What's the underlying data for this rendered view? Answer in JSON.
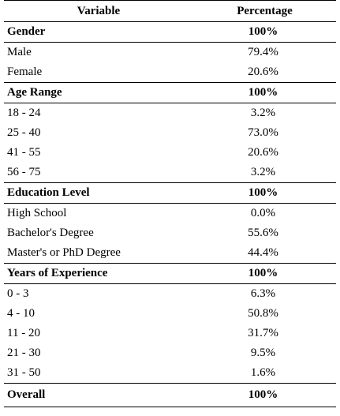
{
  "table": {
    "headers": [
      "Variable",
      "Percentage"
    ],
    "sections": [
      {
        "label": "Gender",
        "total": "100%",
        "rows": [
          {
            "label": "Male",
            "value": "79.4%"
          },
          {
            "label": "Female",
            "value": "20.6%"
          }
        ]
      },
      {
        "label": "Age Range",
        "total": "100%",
        "rows": [
          {
            "label": "18 - 24",
            "value": "3.2%"
          },
          {
            "label": "25 - 40",
            "value": "73.0%"
          },
          {
            "label": "41 - 55",
            "value": "20.6%"
          },
          {
            "label": "56 - 75",
            "value": "3.2%"
          }
        ]
      },
      {
        "label": "Education Level",
        "total": "100%",
        "rows": [
          {
            "label": "High School",
            "value": "0.0%"
          },
          {
            "label": "Bachelor's Degree",
            "value": "55.6%"
          },
          {
            "label": "Master's or PhD Degree",
            "value": "44.4%"
          }
        ]
      },
      {
        "label": "Years of Experience",
        "total": "100%",
        "rows": [
          {
            "label": "0 - 3",
            "value": "6.3%"
          },
          {
            "label": "4 - 10",
            "value": "50.8%"
          },
          {
            "label": "11 - 20",
            "value": "31.7%"
          },
          {
            "label": "21 - 30",
            "value": "9.5%"
          },
          {
            "label": "31 - 50",
            "value": "1.6%"
          }
        ]
      }
    ],
    "overall": {
      "label": "Overall",
      "value": "100%"
    }
  }
}
